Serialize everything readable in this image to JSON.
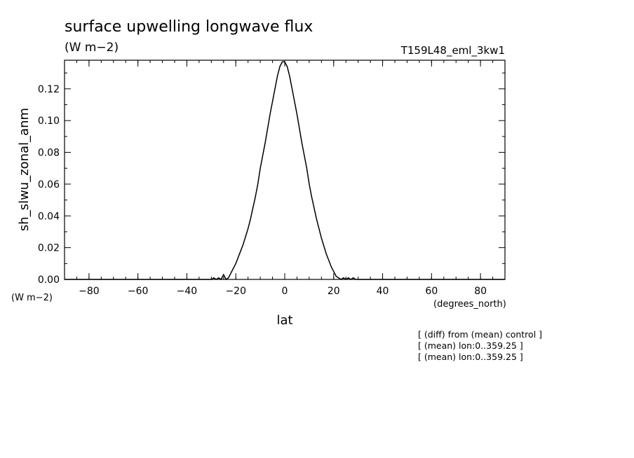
{
  "chart_data": {
    "type": "line",
    "title": "surface upwelling longwave flux",
    "units": "(W m−2)",
    "run_label": "T159L48_eml_3kw1",
    "ylabel": "sh_slwu_zonal_anm",
    "y_units_label": "(W m−2)",
    "xlabel": "lat",
    "x_units_label": "(degrees_north)",
    "xlim": [
      -90,
      90
    ],
    "ylim": [
      0,
      0.138
    ],
    "x_ticks": [
      "−80",
      "−60",
      "−40",
      "−20",
      "0",
      "20",
      "40",
      "60",
      "80"
    ],
    "x_tick_values": [
      -80,
      -60,
      -40,
      -20,
      0,
      20,
      40,
      60,
      80
    ],
    "y_ticks": [
      "0.00",
      "0.02",
      "0.04",
      "0.06",
      "0.08",
      "0.10",
      "0.12"
    ],
    "y_tick_values": [
      0,
      0.02,
      0.04,
      0.06,
      0.08,
      0.1,
      0.12
    ],
    "grid": false,
    "legend": "none",
    "line_color": "#000000",
    "series": [
      {
        "x": [
          -90,
          -30,
          -29,
          -28,
          -27,
          -26,
          -25,
          -24,
          -23,
          -22,
          -21,
          -20,
          -19,
          -18,
          -17,
          -16,
          -15,
          -14,
          -13,
          -12,
          -11,
          -10,
          -9,
          -8,
          -7,
          -6,
          -5,
          -4,
          -3,
          -2,
          -1,
          0,
          1,
          2,
          3,
          4,
          5,
          6,
          7,
          8,
          9,
          10,
          11,
          12,
          13,
          14,
          15,
          16,
          17,
          18,
          19,
          20,
          21,
          22,
          23,
          24,
          25,
          26,
          27,
          28,
          29,
          30,
          90
        ],
        "y": [
          0,
          0,
          0.001,
          0,
          0.001,
          0,
          0.003,
          0,
          0.001,
          0.004,
          0.007,
          0.01,
          0.014,
          0.018,
          0.022,
          0.027,
          0.032,
          0.038,
          0.045,
          0.052,
          0.06,
          0.07,
          0.078,
          0.086,
          0.095,
          0.104,
          0.112,
          0.12,
          0.128,
          0.134,
          0.137,
          0.137,
          0.134,
          0.128,
          0.12,
          0.112,
          0.104,
          0.095,
          0.086,
          0.078,
          0.07,
          0.06,
          0.052,
          0.045,
          0.038,
          0.032,
          0.026,
          0.021,
          0.016,
          0.012,
          0.008,
          0.005,
          0.002,
          0.001,
          0,
          0.001,
          0,
          0.001,
          0,
          0.001,
          0,
          0,
          0
        ]
      }
    ]
  },
  "notes": [
    "[ (diff) from (mean) control ]",
    "[ (mean) lon:0..359.25 ]",
    "[ (mean) lon:0..359.25 ]"
  ]
}
